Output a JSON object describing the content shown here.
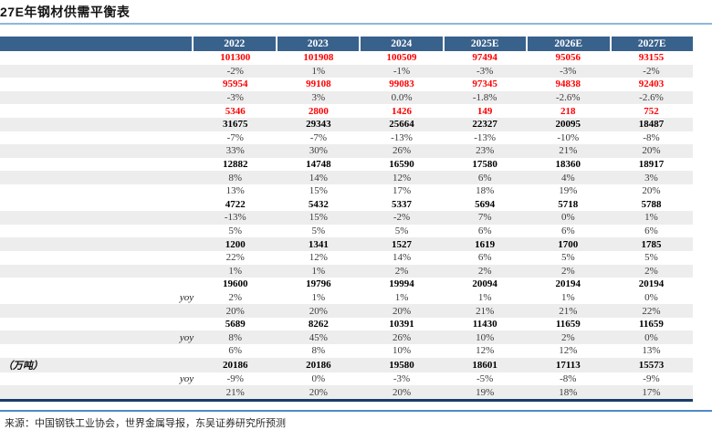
{
  "page": {
    "title": "27E年钢材供需平衡表",
    "footer_source": "来源：中国钢铁工业协会，世界金属导报，东吴证券研究所预测"
  },
  "colors": {
    "header_bg": "#38618C",
    "header_text": "#FFFFFF",
    "stripe_bg": "#EDEDED",
    "red_value": "#FF0000",
    "bold_value": "#000000",
    "plain_value": "#3A3A3A",
    "title_rule": "#8FB6DC",
    "table_bottom_border": "#1A3C66",
    "footer_rule": "#4E8BC4"
  },
  "chart_data": {
    "type": "table",
    "title": "27E年钢材供需平衡表",
    "columns": [
      "2022",
      "2023",
      "2024",
      "2025E",
      "2026E",
      "2027E"
    ],
    "rows": [
      {
        "label": "",
        "sub": "",
        "style": "red",
        "shaded": false,
        "values": [
          "101300",
          "101908",
          "100509",
          "97494",
          "95056",
          "93155"
        ]
      },
      {
        "label": "",
        "sub": "",
        "style": "plain",
        "shaded": true,
        "values": [
          "-2%",
          "1%",
          "-1%",
          "-3%",
          "-3%",
          "-2%"
        ]
      },
      {
        "label": "",
        "sub": "",
        "style": "red",
        "shaded": false,
        "values": [
          "95954",
          "99108",
          "99083",
          "97345",
          "94838",
          "92403"
        ]
      },
      {
        "label": "",
        "sub": "",
        "style": "plain",
        "shaded": true,
        "values": [
          "-3%",
          "3%",
          "0.0%",
          "-1.8%",
          "-2.6%",
          "-2.6%"
        ]
      },
      {
        "label": "",
        "sub": "",
        "style": "red",
        "shaded": false,
        "values": [
          "5346",
          "2800",
          "1426",
          "149",
          "218",
          "752"
        ]
      },
      {
        "label": "",
        "sub": "",
        "style": "bold",
        "shaded": true,
        "values": [
          "31675",
          "29343",
          "25664",
          "22327",
          "20095",
          "18487"
        ]
      },
      {
        "label": "",
        "sub": "",
        "style": "plain",
        "shaded": false,
        "values": [
          "-7%",
          "-7%",
          "-13%",
          "-13%",
          "-10%",
          "-8%"
        ]
      },
      {
        "label": "",
        "sub": "",
        "style": "plain",
        "shaded": true,
        "values": [
          "33%",
          "30%",
          "26%",
          "23%",
          "21%",
          "20%"
        ]
      },
      {
        "label": "",
        "sub": "",
        "style": "bold",
        "shaded": false,
        "values": [
          "12882",
          "14748",
          "16590",
          "17580",
          "18360",
          "18917"
        ]
      },
      {
        "label": "",
        "sub": "",
        "style": "plain",
        "shaded": true,
        "values": [
          "8%",
          "14%",
          "12%",
          "6%",
          "4%",
          "3%"
        ]
      },
      {
        "label": "",
        "sub": "",
        "style": "plain",
        "shaded": false,
        "values": [
          "13%",
          "15%",
          "17%",
          "18%",
          "19%",
          "20%"
        ]
      },
      {
        "label": "",
        "sub": "",
        "style": "bold",
        "shaded": false,
        "values": [
          "4722",
          "5432",
          "5337",
          "5694",
          "5718",
          "5788"
        ]
      },
      {
        "label": "",
        "sub": "",
        "style": "plain",
        "shaded": true,
        "values": [
          "-13%",
          "15%",
          "-2%",
          "7%",
          "0%",
          "1%"
        ]
      },
      {
        "label": "",
        "sub": "",
        "style": "plain",
        "shaded": false,
        "values": [
          "5%",
          "5%",
          "5%",
          "6%",
          "6%",
          "6%"
        ]
      },
      {
        "label": "",
        "sub": "",
        "style": "bold",
        "shaded": true,
        "values": [
          "1200",
          "1341",
          "1527",
          "1619",
          "1700",
          "1785"
        ]
      },
      {
        "label": "",
        "sub": "",
        "style": "plain",
        "shaded": false,
        "values": [
          "22%",
          "12%",
          "14%",
          "6%",
          "5%",
          "5%"
        ]
      },
      {
        "label": "",
        "sub": "",
        "style": "plain",
        "shaded": true,
        "values": [
          "1%",
          "1%",
          "2%",
          "2%",
          "2%",
          "2%"
        ]
      },
      {
        "label": "",
        "sub": "",
        "style": "bold",
        "shaded": false,
        "values": [
          "19600",
          "19796",
          "19994",
          "20094",
          "20194",
          "20194"
        ]
      },
      {
        "label": "",
        "sub": "yoy",
        "style": "plain",
        "shaded": false,
        "values": [
          "2%",
          "1%",
          "1%",
          "1%",
          "1%",
          "0%"
        ]
      },
      {
        "label": "",
        "sub": "",
        "style": "plain",
        "shaded": true,
        "values": [
          "20%",
          "20%",
          "20%",
          "21%",
          "21%",
          "22%"
        ]
      },
      {
        "label": "",
        "sub": "",
        "style": "bold",
        "shaded": false,
        "values": [
          "5689",
          "8262",
          "10391",
          "11430",
          "11659",
          "11659"
        ]
      },
      {
        "label": "",
        "sub": "yoy",
        "style": "plain",
        "shaded": true,
        "values": [
          "8%",
          "45%",
          "26%",
          "10%",
          "2%",
          "0%"
        ]
      },
      {
        "label": "",
        "sub": "",
        "style": "plain",
        "shaded": false,
        "values": [
          "6%",
          "8%",
          "10%",
          "12%",
          "12%",
          "13%"
        ]
      },
      {
        "label": "（万吨）",
        "sub": "",
        "style": "bold",
        "shaded": true,
        "values": [
          "20186",
          "20186",
          "19580",
          "18601",
          "17113",
          "15573"
        ]
      },
      {
        "label": "",
        "sub": "yoy",
        "style": "plain",
        "shaded": false,
        "values": [
          "-9%",
          "0%",
          "-3%",
          "-5%",
          "-8%",
          "-9%"
        ]
      },
      {
        "label": "",
        "sub": "",
        "style": "plain",
        "shaded": true,
        "values": [
          "21%",
          "20%",
          "20%",
          "19%",
          "18%",
          "17%"
        ]
      }
    ]
  }
}
